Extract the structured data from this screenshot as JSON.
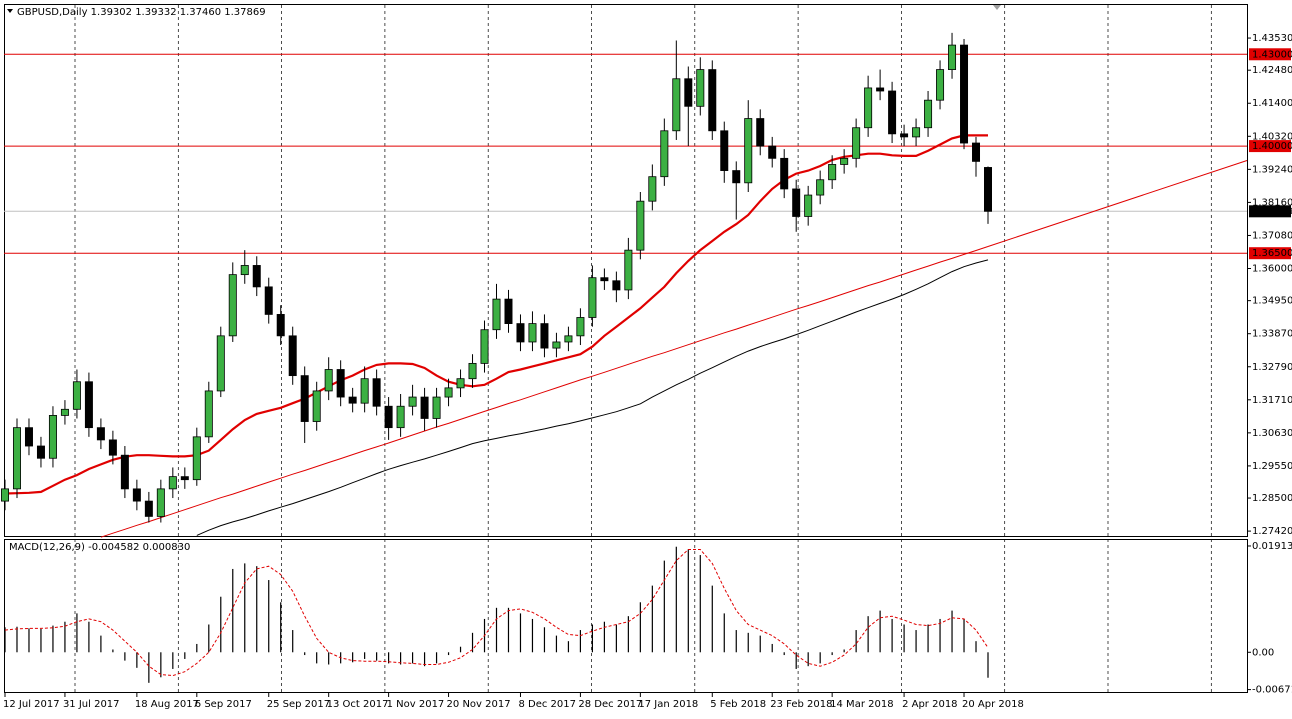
{
  "chart_data": [
    {
      "type": "candlestick",
      "title": "GBPUSD,Daily  1.39302 1.39332 1.37460 1.37869",
      "categories": [
        "12 Jul 2017",
        null,
        null,
        null,
        null,
        "31 Jul 2017",
        null,
        null,
        null,
        null,
        null,
        "18 Aug 2017",
        null,
        null,
        null,
        null,
        "6 Sep 2017",
        null,
        null,
        null,
        null,
        null,
        "25 Sep 2017",
        null,
        null,
        null,
        null,
        "13 Oct 2017",
        null,
        null,
        null,
        null,
        "1 Nov 2017",
        null,
        null,
        null,
        null,
        "20 Nov 2017",
        null,
        null,
        null,
        null,
        null,
        "8 Dec 2017",
        null,
        null,
        null,
        null,
        "28 Dec 2017",
        null,
        null,
        null,
        null,
        "17 Jan 2018",
        null,
        null,
        null,
        null,
        null,
        "5 Feb 2018",
        null,
        null,
        null,
        null,
        "23 Feb 2018",
        null,
        null,
        null,
        null,
        "14 Mar 2018",
        null,
        null,
        null,
        null,
        null,
        "2 Apr 2018",
        null,
        null,
        null,
        null,
        "20 Apr 2018",
        null,
        null
      ],
      "open": [
        1.284,
        1.288,
        1.308,
        1.302,
        1.298,
        1.312,
        1.314,
        1.323,
        1.308,
        1.304,
        1.299,
        1.288,
        1.284,
        1.279,
        1.288,
        1.292,
        1.291,
        1.305,
        1.32,
        1.338,
        1.358,
        1.361,
        1.354,
        1.345,
        1.338,
        1.325,
        1.31,
        1.32,
        1.327,
        1.318,
        1.316,
        1.324,
        1.315,
        1.308,
        1.315,
        1.318,
        1.311,
        1.318,
        1.321,
        1.324,
        1.329,
        1.34,
        1.35,
        1.342,
        1.336,
        1.342,
        1.334,
        1.336,
        1.338,
        1.344,
        1.357,
        1.356,
        1.353,
        1.366,
        1.382,
        1.39,
        1.405,
        1.422,
        1.413,
        1.425,
        1.405,
        1.392,
        1.388,
        1.409,
        1.4,
        1.396,
        1.386,
        1.377,
        1.384,
        1.389,
        1.394,
        1.396,
        1.406,
        1.419,
        1.418,
        1.404,
        1.403,
        1.406,
        1.415,
        1.425,
        1.433,
        1.401,
        1.39302
      ],
      "high": [
        1.291,
        1.311,
        1.311,
        1.305,
        1.315,
        1.317,
        1.327,
        1.326,
        1.311,
        1.307,
        1.302,
        1.291,
        1.287,
        1.291,
        1.295,
        1.295,
        1.308,
        1.323,
        1.341,
        1.362,
        1.366,
        1.364,
        1.357,
        1.348,
        1.341,
        1.328,
        1.323,
        1.331,
        1.33,
        1.321,
        1.328,
        1.327,
        1.318,
        1.319,
        1.322,
        1.321,
        1.321,
        1.324,
        1.327,
        1.332,
        1.343,
        1.355,
        1.353,
        1.345,
        1.346,
        1.345,
        1.339,
        1.341,
        1.347,
        1.361,
        1.36,
        1.359,
        1.37,
        1.385,
        1.394,
        1.409,
        1.4345,
        1.426,
        1.429,
        1.428,
        1.408,
        1.395,
        1.415,
        1.412,
        1.403,
        1.399,
        1.389,
        1.387,
        1.392,
        1.397,
        1.399,
        1.409,
        1.423,
        1.425,
        1.421,
        1.407,
        1.409,
        1.418,
        1.428,
        1.437,
        1.435,
        1.403,
        1.39332
      ],
      "low": [
        1.281,
        1.285,
        1.299,
        1.295,
        1.295,
        1.309,
        1.311,
        1.305,
        1.301,
        1.296,
        1.285,
        1.281,
        1.277,
        1.277,
        1.285,
        1.288,
        1.289,
        1.303,
        1.318,
        1.336,
        1.355,
        1.351,
        1.342,
        1.335,
        1.322,
        1.303,
        1.307,
        1.317,
        1.315,
        1.313,
        1.313,
        1.312,
        1.304,
        1.305,
        1.312,
        1.307,
        1.308,
        1.315,
        1.318,
        1.321,
        1.326,
        1.337,
        1.339,
        1.333,
        1.333,
        1.331,
        1.331,
        1.333,
        1.335,
        1.341,
        1.353,
        1.349,
        1.35,
        1.363,
        1.379,
        1.387,
        1.402,
        1.4,
        1.41,
        1.402,
        1.388,
        1.376,
        1.385,
        1.397,
        1.393,
        1.383,
        1.372,
        1.374,
        1.381,
        1.386,
        1.391,
        1.393,
        1.403,
        1.415,
        1.401,
        1.4,
        1.4,
        1.403,
        1.412,
        1.422,
        1.399,
        1.39,
        1.3746
      ],
      "close": [
        1.288,
        1.308,
        1.302,
        1.298,
        1.312,
        1.314,
        1.323,
        1.308,
        1.304,
        1.299,
        1.288,
        1.284,
        1.279,
        1.288,
        1.292,
        1.291,
        1.305,
        1.32,
        1.338,
        1.358,
        1.361,
        1.354,
        1.345,
        1.338,
        1.325,
        1.31,
        1.32,
        1.327,
        1.318,
        1.316,
        1.324,
        1.315,
        1.308,
        1.315,
        1.318,
        1.311,
        1.318,
        1.321,
        1.324,
        1.329,
        1.34,
        1.35,
        1.342,
        1.336,
        1.342,
        1.334,
        1.336,
        1.338,
        1.344,
        1.357,
        1.356,
        1.353,
        1.366,
        1.382,
        1.39,
        1.405,
        1.422,
        1.413,
        1.425,
        1.405,
        1.392,
        1.388,
        1.409,
        1.4,
        1.396,
        1.386,
        1.377,
        1.384,
        1.389,
        1.394,
        1.396,
        1.406,
        1.419,
        1.418,
        1.404,
        1.403,
        1.406,
        1.415,
        1.425,
        1.433,
        1.401,
        1.395,
        1.37869
      ],
      "up_color": "#3cb043",
      "down_color": "#000000",
      "wick_color": "#000000",
      "lines": [
        {
          "color": "#e00000",
          "width": 2.2,
          "values": [
            1.2865,
            1.2866,
            1.2867,
            1.287,
            1.289,
            1.291,
            1.2925,
            1.2945,
            1.296,
            1.2975,
            1.2985,
            1.299,
            1.299,
            1.2988,
            1.2986,
            1.2986,
            1.299,
            1.3005,
            1.304,
            1.3075,
            1.3105,
            1.3125,
            1.3135,
            1.3145,
            1.316,
            1.3175,
            1.3195,
            1.3215,
            1.3235,
            1.325,
            1.327,
            1.3285,
            1.329,
            1.329,
            1.3288,
            1.3275,
            1.325,
            1.323,
            1.322,
            1.3215,
            1.322,
            1.324,
            1.3262,
            1.327,
            1.328,
            1.329,
            1.33,
            1.331,
            1.332,
            1.3345,
            1.338,
            1.341,
            1.344,
            1.347,
            1.3505,
            1.354,
            1.3585,
            1.3625,
            1.366,
            1.369,
            1.372,
            1.3745,
            1.3775,
            1.382,
            1.386,
            1.389,
            1.391,
            1.392,
            1.3935,
            1.3955,
            1.3965,
            1.397,
            1.3975,
            1.3975,
            1.397,
            1.3968,
            1.3968,
            1.3985,
            1.4005,
            1.4025,
            1.4035,
            1.4035,
            1.4035
          ]
        },
        {
          "color": "#000000",
          "width": 1,
          "values": [
            null,
            null,
            null,
            null,
            null,
            null,
            null,
            null,
            null,
            null,
            null,
            null,
            null,
            null,
            null,
            null,
            1.2728,
            1.2745,
            1.276,
            1.2772,
            1.2783,
            1.2795,
            1.2808,
            1.282,
            1.2832,
            1.2845,
            1.2858,
            1.2871,
            1.2885,
            1.29,
            1.2915,
            1.293,
            1.2944,
            1.2956,
            1.2967,
            1.2978,
            1.299,
            1.3002,
            1.3015,
            1.3028,
            1.3037,
            1.3045,
            1.3053,
            1.306,
            1.3068,
            1.3076,
            1.3085,
            1.3093,
            1.3102,
            1.3112,
            1.3122,
            1.3132,
            1.3145,
            1.3158,
            1.318,
            1.32,
            1.322,
            1.3238,
            1.3258,
            1.3276,
            1.3295,
            1.3313,
            1.333,
            1.3345,
            1.3358,
            1.337,
            1.3384,
            1.3398,
            1.3413,
            1.3428,
            1.3443,
            1.3458,
            1.3472,
            1.3486,
            1.35,
            1.3515,
            1.3532,
            1.355,
            1.357,
            1.359,
            1.3606,
            1.3618,
            1.3628
          ]
        },
        {
          "color": "#e00000",
          "width": 1,
          "extend": true,
          "values": [
            null,
            null,
            null,
            null,
            null,
            null,
            null,
            null,
            1.2722,
            1.2735,
            1.2748,
            1.2761,
            1.2773,
            1.2786,
            1.2799,
            1.2812,
            1.2825,
            1.2838,
            1.2851,
            1.2863,
            1.2876,
            1.2889,
            1.2902,
            1.2915,
            1.2928,
            1.294,
            1.2953,
            1.2966,
            1.2979,
            1.2992,
            1.3005,
            1.3017,
            1.303,
            1.3043,
            1.3056,
            1.3069,
            1.3082,
            1.3094,
            1.3107,
            1.312,
            1.3133,
            1.3146,
            1.3159,
            1.3171,
            1.3184,
            1.3197,
            1.321,
            1.3223,
            1.3236,
            1.3248,
            1.3261,
            1.3274,
            1.3287,
            1.33,
            1.3313,
            1.3325,
            1.3338,
            1.3351,
            1.3364,
            1.3377,
            1.339,
            1.3402,
            1.3415,
            1.3428,
            1.3441,
            1.3454,
            1.3467,
            1.3479,
            1.3492,
            1.3505,
            1.3518,
            1.3531,
            1.3544,
            1.3556,
            1.3569,
            1.3582,
            1.3595,
            1.3608,
            1.3621,
            1.3633,
            1.3646,
            1.3659,
            1.3672
          ]
        }
      ],
      "levels": [
        {
          "value": 1.43,
          "label": "1.43000",
          "color": "#e00000"
        },
        {
          "value": 1.4,
          "label": "1.40000",
          "color": "#e00000"
        },
        {
          "value": 1.365,
          "label": "1.36500",
          "color": "#e00000"
        },
        {
          "value": 1.37869,
          "label": "1.37869",
          "color": "#000000",
          "line_color": "#c0c0c0"
        }
      ],
      "ylim": [
        1.2726,
        1.4461
      ],
      "yticks": [
        {
          "value": 1.4353,
          "label": "1.43530"
        },
        {
          "value": 1.4248,
          "label": "1.42480"
        },
        {
          "value": 1.414,
          "label": "1.41400"
        },
        {
          "value": 1.4032,
          "label": "1.40320"
        },
        {
          "value": 1.3924,
          "label": "1.39240"
        },
        {
          "value": 1.3816,
          "label": "1.38160"
        },
        {
          "value": 1.3708,
          "label": "1.37080"
        },
        {
          "value": 1.36,
          "label": "1.36000"
        },
        {
          "value": 1.3495,
          "label": "1.34950"
        },
        {
          "value": 1.3387,
          "label": "1.33870"
        },
        {
          "value": 1.3279,
          "label": "1.32790"
        },
        {
          "value": 1.3171,
          "label": "1.31710"
        },
        {
          "value": 1.3063,
          "label": "1.30630"
        },
        {
          "value": 1.2955,
          "label": "1.29550"
        },
        {
          "value": 1.285,
          "label": "1.28500"
        },
        {
          "value": 1.2742,
          "label": "1.27420"
        }
      ]
    },
    {
      "type": "macd",
      "title": "MACD(12,26,9) -0.004582 0.000830",
      "color": "#000000",
      "values": [
        0.0045,
        0.0046,
        0.0043,
        0.0042,
        0.0048,
        0.0055,
        0.007,
        0.0055,
        0.003,
        0.0005,
        -0.0015,
        -0.0028,
        -0.0055,
        -0.0045,
        -0.003,
        -0.0012,
        0.0015,
        0.005,
        0.01,
        0.015,
        0.016,
        0.0155,
        0.013,
        0.009,
        0.004,
        -0.0005,
        -0.002,
        -0.0022,
        -0.002,
        -0.0018,
        -0.0012,
        -0.0015,
        -0.002,
        -0.0022,
        -0.002,
        -0.0025,
        -0.002,
        -0.0005,
        0.001,
        0.0035,
        0.006,
        0.008,
        0.008,
        0.007,
        0.006,
        0.0045,
        0.003,
        0.002,
        0.004,
        0.005,
        0.0055,
        0.005,
        0.0065,
        0.009,
        0.012,
        0.0165,
        0.019,
        0.0185,
        0.0175,
        0.012,
        0.007,
        0.004,
        0.0035,
        0.003,
        0.0015,
        -0.0005,
        -0.003,
        -0.0025,
        -0.002,
        -0.0005,
        0.0005,
        0.004,
        0.0065,
        0.0075,
        0.006,
        0.005,
        0.004,
        0.005,
        0.006,
        0.0075,
        0.006,
        0.002,
        -0.004582
      ],
      "signal": {
        "color": "#e00000",
        "values": [
          0.004,
          0.0042,
          0.0043,
          0.0043,
          0.0044,
          0.0047,
          0.0055,
          0.006,
          0.0055,
          0.004,
          0.002,
          0.0,
          -0.0025,
          -0.004,
          -0.0042,
          -0.0035,
          -0.002,
          0.0,
          0.0035,
          0.008,
          0.0125,
          0.015,
          0.0155,
          0.014,
          0.011,
          0.0065,
          0.0025,
          0.0,
          -0.001,
          -0.0015,
          -0.0016,
          -0.0016,
          -0.0017,
          -0.0019,
          -0.002,
          -0.0022,
          -0.0022,
          -0.0018,
          -0.001,
          0.0005,
          0.003,
          0.006,
          0.0075,
          0.0078,
          0.0072,
          0.006,
          0.0045,
          0.0032,
          0.003,
          0.0038,
          0.0045,
          0.005,
          0.0055,
          0.007,
          0.0095,
          0.013,
          0.0165,
          0.0185,
          0.0185,
          0.016,
          0.0115,
          0.0075,
          0.005,
          0.004,
          0.003,
          0.0015,
          -0.0005,
          -0.002,
          -0.0025,
          -0.0018,
          -0.0005,
          0.0015,
          0.0045,
          0.0062,
          0.0065,
          0.0058,
          0.005,
          0.0048,
          0.0052,
          0.0062,
          0.006,
          0.004,
          0.00083
        ]
      },
      "ylim": [
        -0.00715,
        0.02021
      ],
      "yticks": [
        0.019133,
        {
          "value": 0,
          "label": "0.00"
        },
        -0.006718
      ]
    }
  ]
}
